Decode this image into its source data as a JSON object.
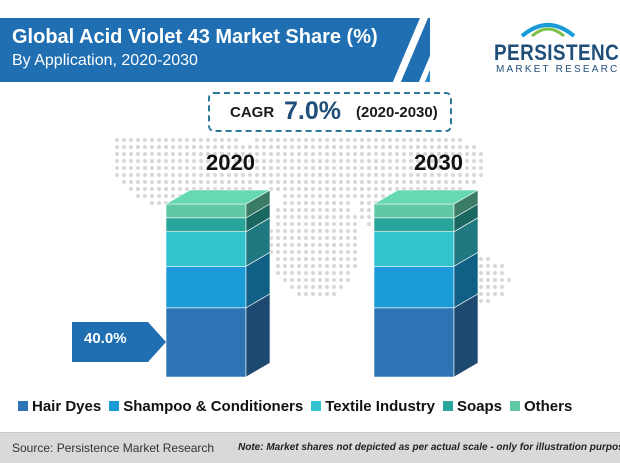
{
  "header": {
    "title": "Global Acid Violet 43 Market Share (%)",
    "subtitle": "By Application, 2020-2030"
  },
  "logo": {
    "name": "PERSISTENCE",
    "tagline": "MARKET RESEARCH"
  },
  "cagr": {
    "label": "CAGR",
    "value": "7.0%",
    "period": "(2020-2030)"
  },
  "callout": "40.0%",
  "footer": {
    "source": "Source: Persistence Market Research",
    "note": "Note: Market shares not depicted as per actual scale - only for illustration purposes"
  },
  "colors": {
    "header_bg": "#1f6fb2",
    "hair_dyes": "#2e74b5",
    "shampoo": "#1a9bd7",
    "textile": "#33c3cf",
    "soaps": "#2aa59b",
    "others": "#5ec8a7",
    "map_dots": "#d9d9d9"
  },
  "chart_data": {
    "type": "bar",
    "stacked": true,
    "categories": [
      "2020",
      "2030"
    ],
    "series": [
      {
        "name": "Hair Dyes",
        "values": [
          40.0,
          40.0
        ]
      },
      {
        "name": "Shampoo & Conditioners",
        "values": [
          24,
          24
        ]
      },
      {
        "name": "Textile Industry",
        "values": [
          20,
          20
        ]
      },
      {
        "name": "Soaps",
        "values": [
          8,
          8
        ]
      },
      {
        "name": "Others",
        "values": [
          8,
          8
        ]
      }
    ],
    "title": "Global Acid Violet 43 Market Share (%)",
    "subtitle": "By Application, 2020-2030",
    "legend": "bottom",
    "grid": false
  }
}
